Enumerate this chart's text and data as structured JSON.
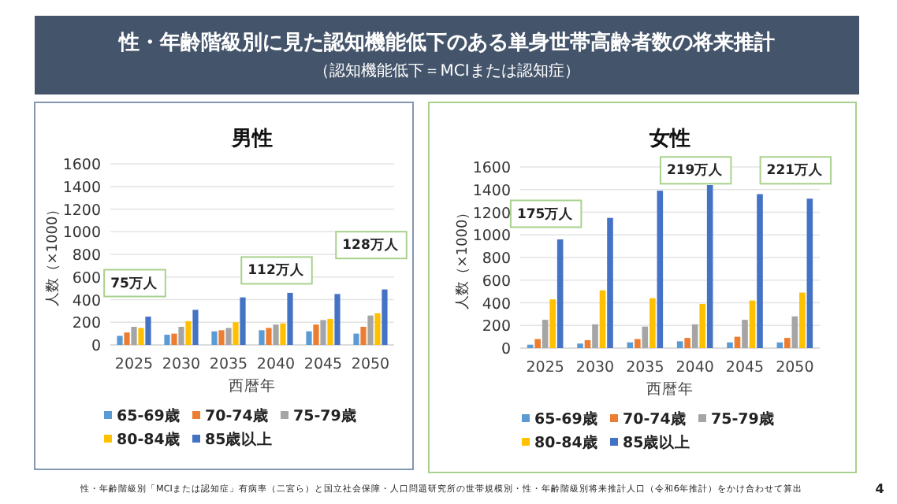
{
  "chart_data": [
    {
      "type": "other",
      "title": "性・年齢階級別に見た認知機能低下のある単身世帯高齢者数の将来推計",
      "subtitle": "（認知機能低下＝MCIまたは認知症）",
      "annotations": [
        "性・年齢階級別「MCIまたは認知症」有病率（二宮ら）と国立社会保障・人口問題研究所の世帯規模別・性・年齢階級別将来推計人口（令和6年推計）をかけ合わせて算出",
        "4"
      ]
    },
    {
      "type": "bar",
      "title": "男性",
      "xlabel": "西暦年",
      "ylabel": "人数（×1000）",
      "categories": [
        "2025",
        "2030",
        "2035",
        "2040",
        "2045",
        "2050"
      ],
      "series": [
        {
          "name": "65-69歳",
          "color": "#5b9bd5",
          "values": [
            80,
            90,
            120,
            130,
            120,
            100
          ]
        },
        {
          "name": "70-74歳",
          "color": "#ed7d31",
          "values": [
            110,
            100,
            130,
            150,
            180,
            160
          ]
        },
        {
          "name": "75-79歳",
          "color": "#a5a5a5",
          "values": [
            160,
            160,
            150,
            180,
            220,
            260
          ]
        },
        {
          "name": "80-84歳",
          "color": "#ffc000",
          "values": [
            150,
            210,
            200,
            190,
            230,
            280
          ]
        },
        {
          "name": "85歳以上",
          "color": "#4472c4",
          "values": [
            250,
            310,
            420,
            460,
            450,
            490
          ]
        }
      ],
      "ylim": [
        0,
        1600
      ],
      "yticks": [
        0,
        200,
        400,
        600,
        800,
        1000,
        1200,
        1400,
        1600
      ],
      "grid": "y",
      "legend": "bottom",
      "annotations": [
        "75万人",
        "112万人",
        "128万人"
      ]
    },
    {
      "type": "bar",
      "title": "女性",
      "xlabel": "西暦年",
      "ylabel": "人数（×1000）",
      "categories": [
        "2025",
        "2030",
        "2035",
        "2040",
        "2045",
        "2050"
      ],
      "series": [
        {
          "name": "65-69歳",
          "color": "#5b9bd5",
          "values": [
            30,
            40,
            50,
            60,
            50,
            50
          ]
        },
        {
          "name": "70-74歳",
          "color": "#ed7d31",
          "values": [
            80,
            70,
            80,
            90,
            100,
            90
          ]
        },
        {
          "name": "75-79歳",
          "color": "#a5a5a5",
          "values": [
            250,
            210,
            190,
            210,
            250,
            280
          ]
        },
        {
          "name": "80-84歳",
          "color": "#ffc000",
          "values": [
            430,
            510,
            440,
            390,
            420,
            490
          ]
        },
        {
          "name": "85歳以上",
          "color": "#4472c4",
          "values": [
            960,
            1150,
            1390,
            1440,
            1360,
            1320
          ]
        }
      ],
      "ylim": [
        0,
        1600
      ],
      "yticks": [
        0,
        200,
        400,
        600,
        800,
        1000,
        1200,
        1400,
        1600
      ],
      "grid": "y",
      "legend": "bottom",
      "annotations": [
        "175万人",
        "219万人",
        "221万人"
      ]
    }
  ]
}
